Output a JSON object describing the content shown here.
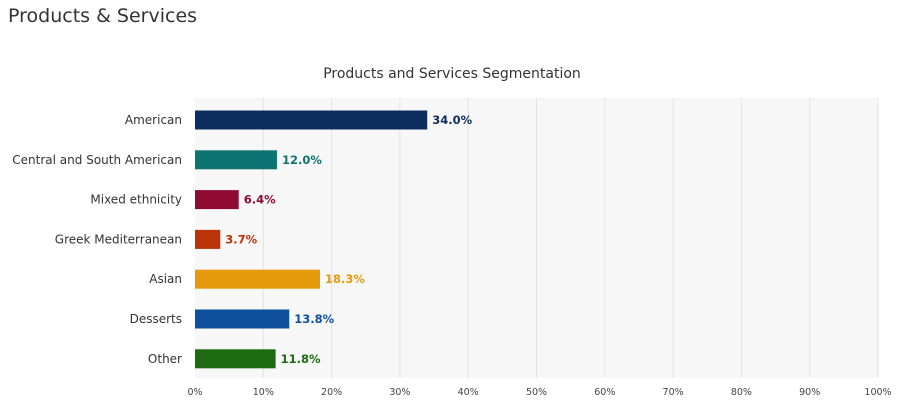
{
  "header": {
    "section_title": "Products & Services"
  },
  "chart_data": {
    "type": "bar",
    "orientation": "horizontal",
    "title": "Products and Services Segmentation",
    "categories": [
      "American",
      "Central and South American",
      "Mixed ethnicity",
      "Greek Mediterranean",
      "Asian",
      "Desserts",
      "Other"
    ],
    "values": [
      34.0,
      12.0,
      6.4,
      3.7,
      18.3,
      13.8,
      11.8
    ],
    "value_labels": [
      "34.0%",
      "12.0%",
      "6.4%",
      "3.7%",
      "18.3%",
      "13.8%",
      "11.8%"
    ],
    "colors": [
      "#0d2d5e",
      "#0e7471",
      "#8e0a33",
      "#bb3308",
      "#e49a0b",
      "#0c4f9a",
      "#1d6a13"
    ],
    "xlim": [
      0,
      100
    ],
    "x_ticks": [
      "0%",
      "10%",
      "20%",
      "30%",
      "40%",
      "50%",
      "60%",
      "70%",
      "80%",
      "90%",
      "100%"
    ],
    "x_tick_values": [
      0,
      10,
      20,
      30,
      40,
      50,
      60,
      70,
      80,
      90,
      100
    ],
    "grid": true,
    "plot_background": "#f7f7f7",
    "grid_color": "#e3e3e3"
  }
}
